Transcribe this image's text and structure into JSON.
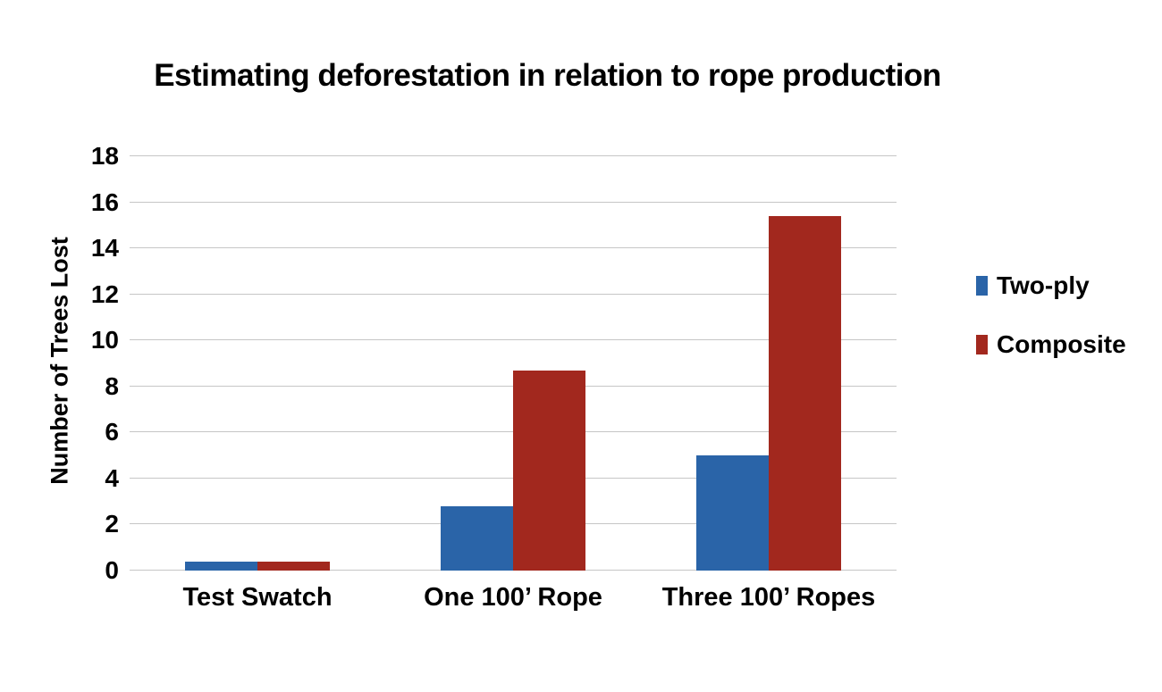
{
  "chart_data": {
    "type": "bar",
    "title": "Estimating deforestation in relation to rope production",
    "xlabel": "",
    "ylabel": "Number of Trees Lost",
    "categories": [
      "Test Swatch",
      "One 100’ Rope",
      "Three 100’ Ropes"
    ],
    "series": [
      {
        "name": "Two-ply",
        "color": "#2A64A8",
        "values": [
          0.4,
          2.8,
          5.0
        ]
      },
      {
        "name": "Composite",
        "color": "#A2281E",
        "values": [
          0.4,
          8.7,
          15.4
        ]
      }
    ],
    "ylim": [
      0,
      18
    ],
    "ytick_step": 2,
    "yticks": [
      0,
      2,
      4,
      6,
      8,
      10,
      12,
      14,
      16,
      18
    ],
    "grid": true,
    "grid_color": "#C6C6C6",
    "legend_position": "right",
    "background_color": "#FFFFFF",
    "text_color": "#000000"
  }
}
